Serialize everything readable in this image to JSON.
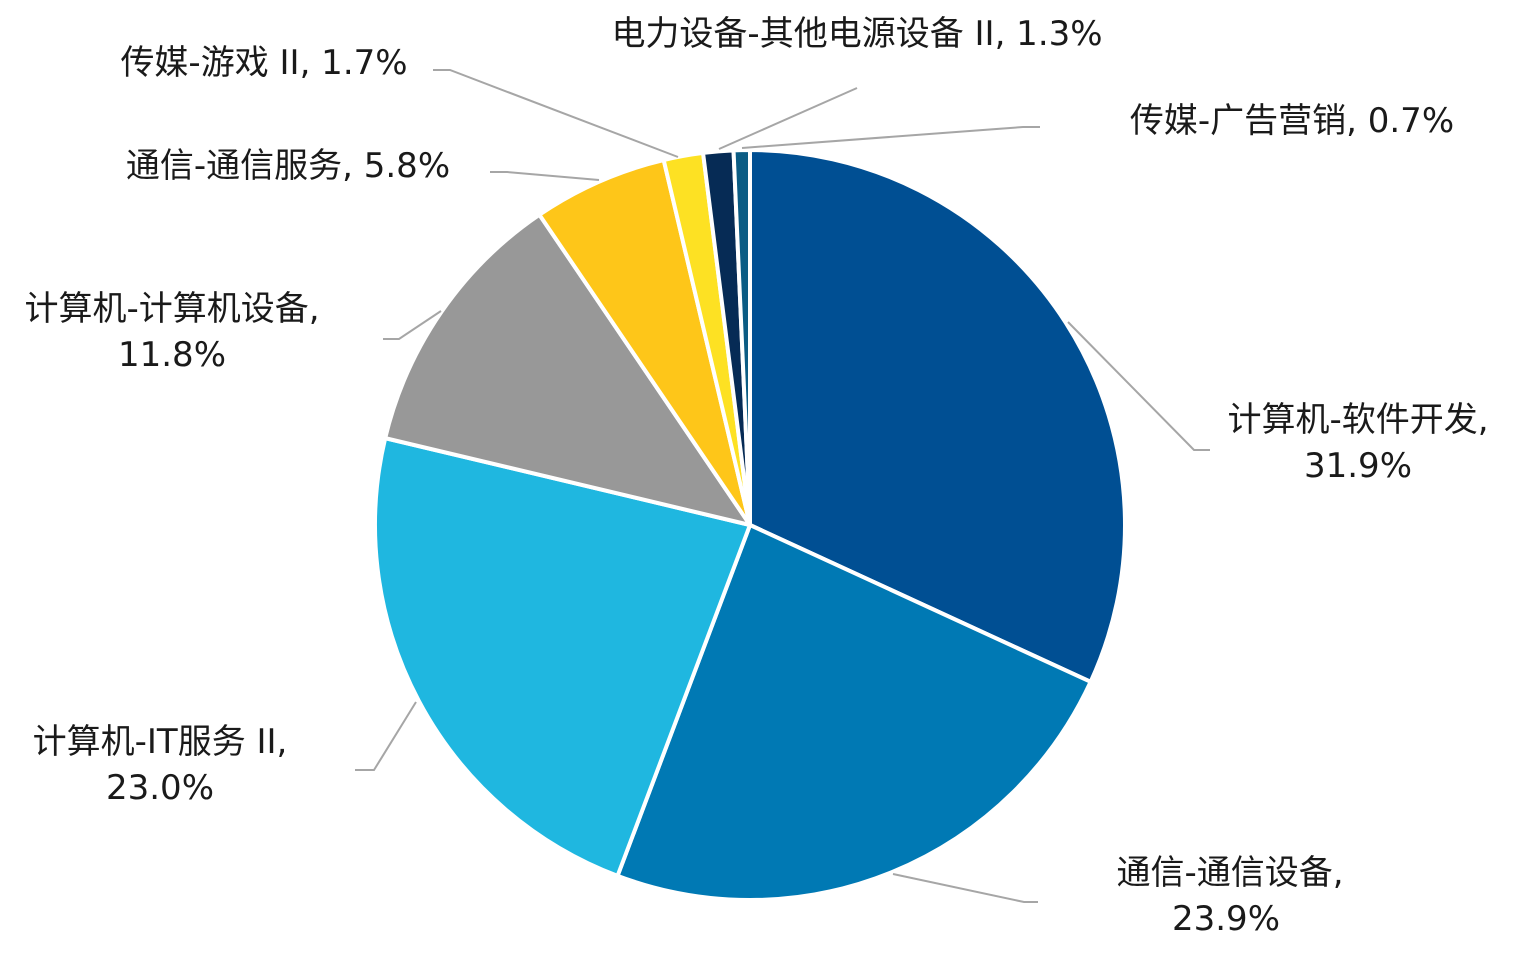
{
  "chart_data": {
    "type": "pie",
    "title": "",
    "slices": [
      {
        "label": "计算机-软件开发",
        "value": 31.9,
        "pct_text": "31.9%",
        "color": "#004F93"
      },
      {
        "label": "通信-通信设备",
        "value": 23.9,
        "pct_text": "23.9%",
        "color": "#0079B4"
      },
      {
        "label": "计算机-IT服务 II",
        "value": 23.0,
        "pct_text": "23.0%",
        "color": "#1FB7E0"
      },
      {
        "label": "计算机-计算机设备",
        "value": 11.8,
        "pct_text": "11.8%",
        "color": "#989898"
      },
      {
        "label": "通信-通信服务",
        "value": 5.8,
        "pct_text": "5.8%",
        "color": "#FEC619"
      },
      {
        "label": "传媒-游戏 II",
        "value": 1.7,
        "pct_text": "1.7%",
        "color": "#FDE123"
      },
      {
        "label": "电力设备-其他电源设备 II",
        "value": 1.3,
        "pct_text": "1.3%",
        "color": "#062B55"
      },
      {
        "label": "传媒-广告营销",
        "value": 0.7,
        "pct_text": "0.7%",
        "color": "#0B5C84"
      }
    ],
    "leader_line_color": "#A6A6A6"
  }
}
